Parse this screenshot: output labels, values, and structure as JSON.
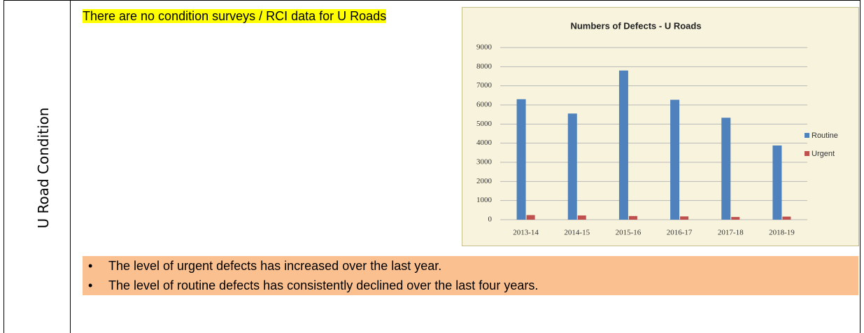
{
  "side_label": "U Road Condition",
  "note": "There are no condition surveys / RCI data for U Roads",
  "chart_data": {
    "type": "bar",
    "title": "Numbers of Defects - U Roads",
    "categories": [
      "2013-14",
      "2014-15",
      "2015-16",
      "2016-17",
      "2017-18",
      "2018-19"
    ],
    "series": [
      {
        "name": "Routine",
        "color": "#4f81bd",
        "values": [
          6300,
          5550,
          7800,
          6270,
          5330,
          3880
        ]
      },
      {
        "name": "Urgent",
        "color": "#c0504d",
        "values": [
          240,
          220,
          190,
          170,
          140,
          160
        ]
      }
    ],
    "ylim": [
      0,
      9000
    ],
    "yticks": [
      0,
      1000,
      2000,
      3000,
      4000,
      5000,
      6000,
      7000,
      8000,
      9000
    ],
    "grid": true,
    "legend": "right"
  },
  "bullets": [
    "The level of urgent defects has increased over the last year.",
    "The level of routine defects has consistently declined over the last four years."
  ]
}
